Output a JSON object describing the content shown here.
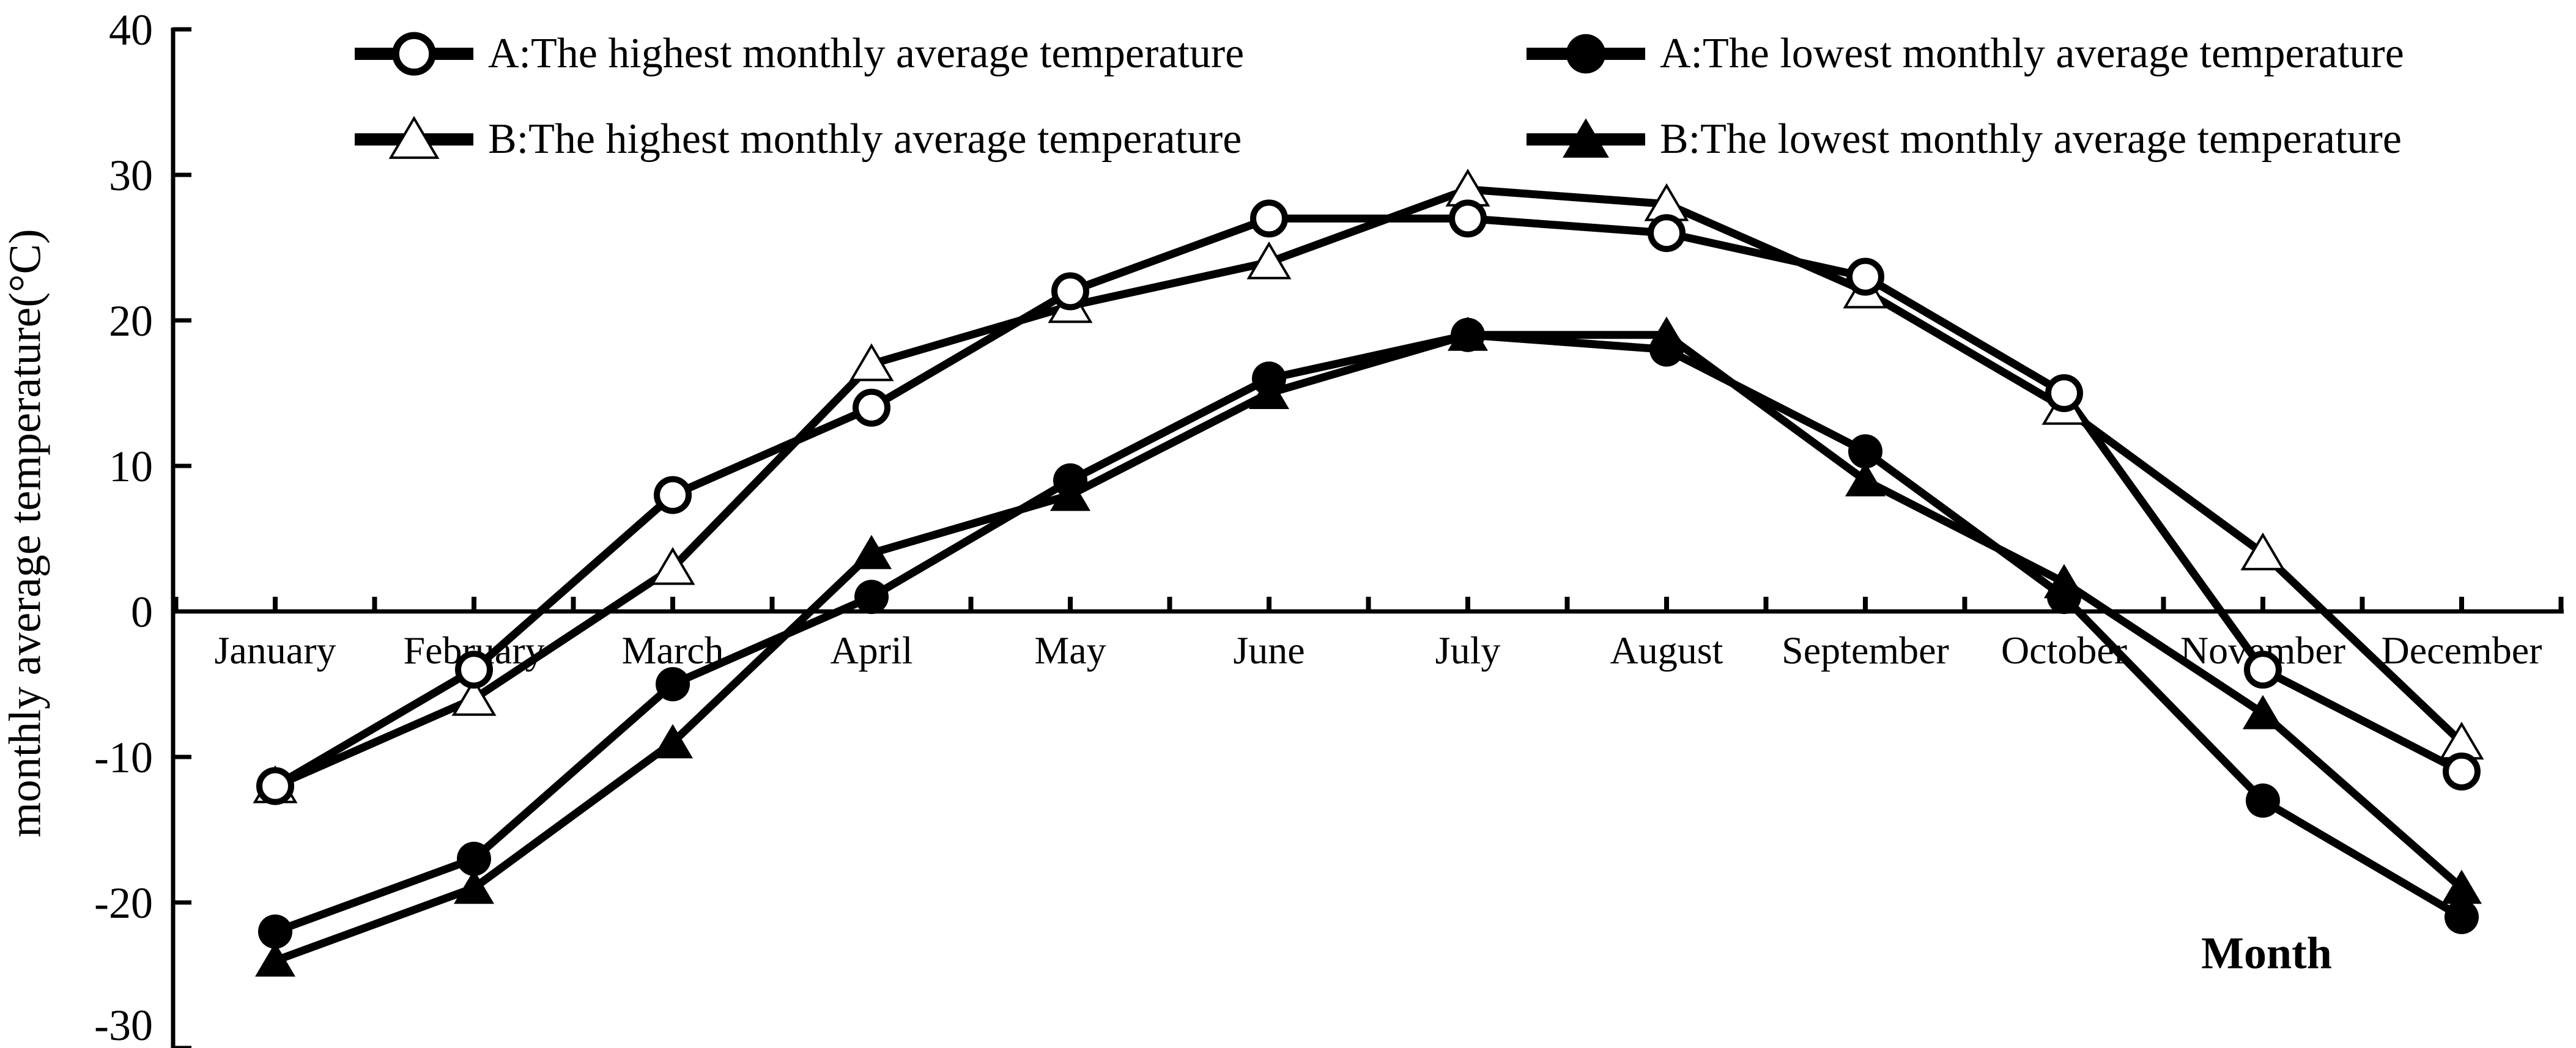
{
  "chart_data": {
    "type": "line",
    "title": "",
    "xlabel": "Month",
    "ylabel": "monthly average temperature(°C)",
    "categories": [
      "January",
      "February",
      "March",
      "April",
      "May",
      "June",
      "July",
      "August",
      "September",
      "October",
      "November",
      "December"
    ],
    "series": [
      {
        "name": "A:The highest monthly average temperature",
        "marker": "open-circle",
        "values": [
          -12,
          -4,
          8,
          14,
          22,
          27,
          27,
          26,
          23,
          15,
          -4,
          -11
        ]
      },
      {
        "name": "A:The lowest monthly average temperature",
        "marker": "filled-circle",
        "values": [
          -22,
          -17,
          -5,
          1,
          9,
          16,
          19,
          18,
          11,
          1,
          -13,
          -21
        ]
      },
      {
        "name": "B:The highest monthly average temperature",
        "marker": "open-triangle",
        "values": [
          -12,
          -6,
          3,
          17,
          21,
          24,
          29,
          28,
          22,
          14,
          4,
          -9
        ]
      },
      {
        "name": "B:The lowest monthly average temperature",
        "marker": "filled-triangle",
        "values": [
          -24,
          -19,
          -9,
          4,
          8,
          15,
          19,
          19,
          9,
          2,
          -7,
          -19
        ]
      }
    ],
    "ylim": [
      -30,
      40
    ],
    "yticks": [
      40,
      30,
      20,
      10,
      0,
      -10,
      -20,
      -30
    ],
    "grid": false,
    "legend_position": "top",
    "line_color": "#000000",
    "background_color": "#ffffff"
  },
  "legend": {
    "items": [
      {
        "label": "A:The highest monthly average temperature",
        "marker": "open-circle"
      },
      {
        "label": "B:The highest monthly average temperature",
        "marker": "open-triangle"
      },
      {
        "label": "A:The lowest monthly average temperature",
        "marker": "filled-circle"
      },
      {
        "label": "B:The lowest monthly average temperature",
        "marker": "filled-triangle"
      }
    ]
  },
  "axes": {
    "y_title": "monthly average temperature(°C)",
    "x_title": "Month"
  }
}
